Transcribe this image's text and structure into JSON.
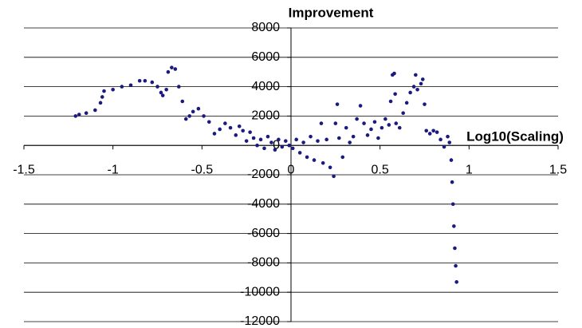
{
  "chart_data": {
    "type": "scatter",
    "title": "Improvement",
    "x_label": "Log10(Scaling)",
    "color": "#1a1a80",
    "grid": true,
    "xlim": [
      -1.5,
      1.5
    ],
    "xticks": [
      -1.5,
      -1,
      -0.5,
      0,
      0.5,
      1,
      1.5
    ],
    "ylim": [
      -12000,
      8000
    ],
    "yticks": [
      -12000,
      -10000,
      -8000,
      -6000,
      -4000,
      -2000,
      0,
      2000,
      4000,
      6000,
      8000
    ],
    "x": [
      -1.21,
      -1.19,
      -1.15,
      -1.1,
      -1.07,
      -1.06,
      -1.05,
      -1.0,
      -0.95,
      -0.9,
      -0.85,
      -0.82,
      -0.78,
      -0.75,
      -0.73,
      -0.72,
      -0.7,
      -0.69,
      -0.67,
      -0.65,
      -0.63,
      -0.61,
      -0.59,
      -0.57,
      -0.55,
      -0.52,
      -0.49,
      -0.46,
      -0.43,
      -0.4,
      -0.37,
      -0.34,
      -0.31,
      -0.29,
      -0.27,
      -0.25,
      -0.23,
      -0.21,
      -0.19,
      -0.17,
      -0.15,
      -0.13,
      -0.11,
      -0.09,
      -0.07,
      -0.05,
      -0.03,
      -0.01,
      0.01,
      0.03,
      0.05,
      0.07,
      0.09,
      0.11,
      0.13,
      0.15,
      0.17,
      0.18,
      0.2,
      0.22,
      0.24,
      0.25,
      0.26,
      0.27,
      0.29,
      0.31,
      0.33,
      0.35,
      0.37,
      0.39,
      0.41,
      0.43,
      0.45,
      0.47,
      0.49,
      0.51,
      0.53,
      0.55,
      0.56,
      0.57,
      0.58,
      0.585,
      0.59,
      0.61,
      0.63,
      0.65,
      0.67,
      0.69,
      0.7,
      0.71,
      0.73,
      0.74,
      0.75,
      0.76,
      0.78,
      0.8,
      0.82,
      0.84,
      0.86,
      0.88,
      0.89,
      0.9,
      0.905,
      0.91,
      0.915,
      0.92,
      0.925,
      0.93
    ],
    "values": [
      2000,
      2100,
      2200,
      2400,
      2900,
      3300,
      3700,
      3800,
      4000,
      4100,
      4400,
      4400,
      4300,
      4000,
      3600,
      3400,
      3800,
      5000,
      5300,
      5200,
      4000,
      3000,
      1800,
      2000,
      2300,
      2500,
      2000,
      1600,
      800,
      1100,
      1500,
      1200,
      700,
      1300,
      1000,
      300,
      900,
      500,
      0,
      400,
      -200,
      600,
      200,
      -300,
      400,
      -100,
      300,
      0,
      -200,
      400,
      -500,
      200,
      -800,
      600,
      -1000,
      300,
      1500,
      -1200,
      400,
      -1500,
      -2100,
      1500,
      2800,
      500,
      -800,
      1200,
      200,
      600,
      1800,
      2700,
      1500,
      700,
      1100,
      1600,
      500,
      1200,
      1800,
      1400,
      3000,
      4800,
      4900,
      3500,
      1500,
      1200,
      2200,
      2900,
      3600,
      4000,
      4800,
      3800,
      4200,
      4500,
      2800,
      1000,
      800,
      1000,
      900,
      400,
      -100,
      600,
      200,
      -1000,
      -2500,
      -4000,
      -5500,
      -7000,
      -8200,
      -9300
    ]
  }
}
